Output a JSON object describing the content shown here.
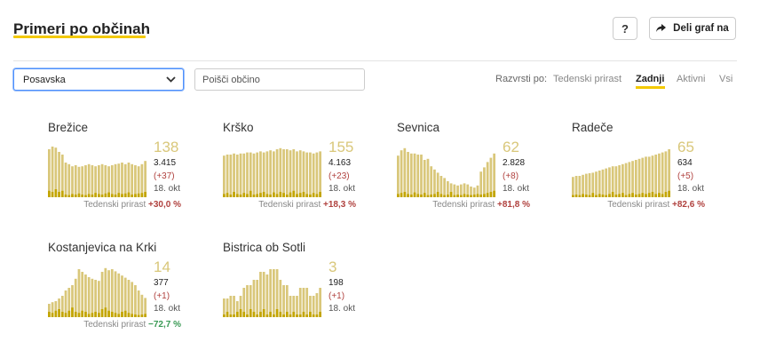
{
  "header": {
    "title": "Primeri po občinah",
    "help_label": "?",
    "share_label": "Deli graf na"
  },
  "controls": {
    "region_select_value": "Posavska",
    "search_placeholder": "Poišči občino",
    "sort_label": "Razvrsti po:",
    "sort_options": [
      "Tedenski prirast",
      "Zadnji",
      "Aktivni",
      "Vsi"
    ],
    "sort_active": "Zadnji"
  },
  "weekly_label": "Tedenski prirast",
  "colors": {
    "bar": "#d9c77a",
    "bar_dark": "#c3a500",
    "accent": "#f3c900",
    "up": "#b0413e",
    "down": "#3a9a55"
  },
  "municipalities": [
    {
      "name": "Brežice",
      "active": "138",
      "total": "3.415",
      "delta": "(+37)",
      "date": "18. okt",
      "weekly": "+30,0 %",
      "trend": "up",
      "active_series": [
        0.9,
        0.95,
        0.93,
        0.85,
        0.8,
        0.65,
        0.62,
        0.58,
        0.6,
        0.57,
        0.58,
        0.6,
        0.62,
        0.6,
        0.58,
        0.6,
        0.62,
        0.6,
        0.58,
        0.6,
        0.62,
        0.63,
        0.65,
        0.62,
        0.65,
        0.62,
        0.6,
        0.58,
        0.62,
        0.68
      ],
      "new_series": [
        0.12,
        0.1,
        0.15,
        0.1,
        0.12,
        0.05,
        0.04,
        0.06,
        0.05,
        0.07,
        0.05,
        0.04,
        0.06,
        0.05,
        0.08,
        0.06,
        0.05,
        0.07,
        0.09,
        0.06,
        0.05,
        0.08,
        0.06,
        0.07,
        0.09,
        0.05,
        0.06,
        0.07,
        0.08,
        0.1
      ]
    },
    {
      "name": "Krško",
      "active": "155",
      "total": "4.163",
      "delta": "(+23)",
      "date": "18. okt",
      "weekly": "+18,3 %",
      "trend": "up",
      "active_series": [
        0.78,
        0.8,
        0.8,
        0.82,
        0.8,
        0.82,
        0.82,
        0.84,
        0.84,
        0.82,
        0.84,
        0.86,
        0.84,
        0.86,
        0.88,
        0.86,
        0.9,
        0.92,
        0.9,
        0.9,
        0.88,
        0.9,
        0.86,
        0.88,
        0.86,
        0.84,
        0.84,
        0.82,
        0.84,
        0.86
      ],
      "new_series": [
        0.06,
        0.08,
        0.05,
        0.1,
        0.06,
        0.05,
        0.08,
        0.06,
        0.12,
        0.05,
        0.06,
        0.08,
        0.1,
        0.06,
        0.05,
        0.09,
        0.06,
        0.1,
        0.08,
        0.05,
        0.09,
        0.12,
        0.06,
        0.08,
        0.1,
        0.06,
        0.05,
        0.08,
        0.06,
        0.1
      ]
    },
    {
      "name": "Sevnica",
      "active": "62",
      "total": "2.828",
      "delta": "(+8)",
      "date": "18. okt",
      "weekly": "+81,8 %",
      "trend": "up",
      "active_series": [
        0.78,
        0.88,
        0.92,
        0.85,
        0.82,
        0.82,
        0.8,
        0.8,
        0.7,
        0.72,
        0.58,
        0.52,
        0.46,
        0.4,
        0.36,
        0.3,
        0.26,
        0.24,
        0.22,
        0.24,
        0.26,
        0.24,
        0.2,
        0.18,
        0.22,
        0.48,
        0.56,
        0.66,
        0.74,
        0.82
      ],
      "new_series": [
        0.06,
        0.08,
        0.1,
        0.06,
        0.05,
        0.09,
        0.06,
        0.05,
        0.08,
        0.04,
        0.05,
        0.06,
        0.1,
        0.06,
        0.04,
        0.05,
        0.1,
        0.04,
        0.05,
        0.04,
        0.06,
        0.05,
        0.04,
        0.05,
        0.06,
        0.05,
        0.06,
        0.08,
        0.1,
        0.12
      ]
    },
    {
      "name": "Radeče",
      "active": "65",
      "total": "634",
      "delta": "(+5)",
      "date": "18. okt",
      "weekly": "+82,6 %",
      "trend": "up",
      "active_series": [
        0.38,
        0.4,
        0.4,
        0.42,
        0.44,
        0.45,
        0.46,
        0.48,
        0.5,
        0.52,
        0.54,
        0.56,
        0.58,
        0.58,
        0.6,
        0.62,
        0.64,
        0.66,
        0.68,
        0.7,
        0.72,
        0.74,
        0.76,
        0.76,
        0.78,
        0.8,
        0.82,
        0.84,
        0.86,
        0.9
      ],
      "new_series": [
        0.04,
        0.05,
        0.04,
        0.06,
        0.05,
        0.04,
        0.08,
        0.04,
        0.06,
        0.05,
        0.04,
        0.06,
        0.1,
        0.05,
        0.06,
        0.08,
        0.04,
        0.06,
        0.08,
        0.05,
        0.06,
        0.08,
        0.06,
        0.08,
        0.1,
        0.06,
        0.08,
        0.06,
        0.1,
        0.12
      ]
    },
    {
      "name": "Kostanjevica na Krki",
      "active": "14",
      "total": "377",
      "delta": "(+1)",
      "date": "18. okt",
      "weekly": "−72,7 %",
      "trend": "down",
      "active_series": [
        0.25,
        0.28,
        0.3,
        0.35,
        0.4,
        0.5,
        0.55,
        0.6,
        0.72,
        0.9,
        0.85,
        0.8,
        0.75,
        0.72,
        0.7,
        0.68,
        0.85,
        0.92,
        0.88,
        0.9,
        0.86,
        0.82,
        0.78,
        0.74,
        0.7,
        0.66,
        0.6,
        0.5,
        0.42,
        0.36
      ],
      "new_series": [
        0.1,
        0.08,
        0.12,
        0.15,
        0.1,
        0.08,
        0.12,
        0.18,
        0.1,
        0.08,
        0.12,
        0.1,
        0.06,
        0.08,
        0.1,
        0.08,
        0.15,
        0.18,
        0.12,
        0.1,
        0.08,
        0.06,
        0.1,
        0.12,
        0.08,
        0.06,
        0.05,
        0.04,
        0.05,
        0.06
      ]
    },
    {
      "name": "Bistrica ob Sotli",
      "active": "3",
      "total": "198",
      "delta": "(+1)",
      "date": "18. okt",
      "weekly": "",
      "trend": "up",
      "active_series": [
        0.35,
        0.35,
        0.4,
        0.4,
        0.3,
        0.4,
        0.55,
        0.6,
        0.6,
        0.7,
        0.7,
        0.85,
        0.85,
        0.8,
        0.9,
        0.9,
        0.9,
        0.7,
        0.6,
        0.6,
        0.4,
        0.4,
        0.4,
        0.55,
        0.55,
        0.55,
        0.4,
        0.4,
        0.45,
        0.55
      ],
      "new_series": [
        0.05,
        0.1,
        0.05,
        0.05,
        0.1,
        0.15,
        0.1,
        0.05,
        0.15,
        0.1,
        0.05,
        0.1,
        0.15,
        0.05,
        0.1,
        0.05,
        0.15,
        0.1,
        0.05,
        0.1,
        0.05,
        0.1,
        0.05,
        0.05,
        0.1,
        0.05,
        0.1,
        0.05,
        0.05,
        0.1
      ]
    }
  ]
}
